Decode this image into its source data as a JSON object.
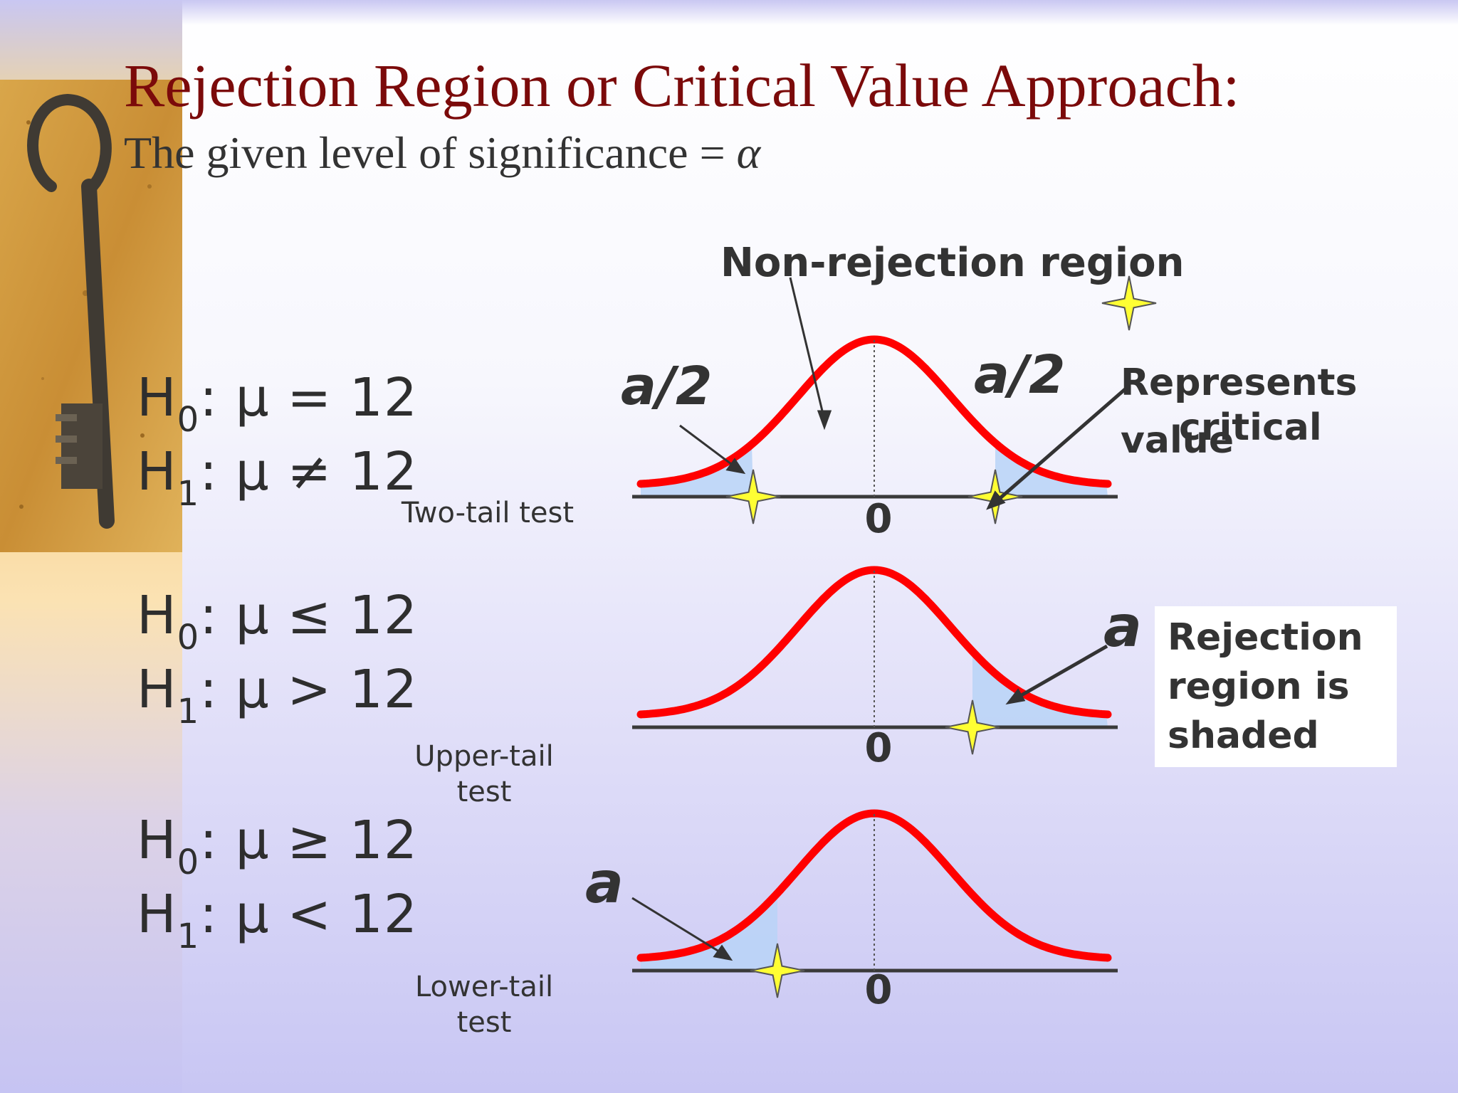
{
  "slide": {
    "title": "Rejection Region or Critical Value Approach:",
    "subtitle_prefix": "The given level of significance = ",
    "subtitle_symbol": "α"
  },
  "tests": [
    {
      "h0": {
        "sym": "H",
        "sub": "0",
        "rest": ": μ = 12"
      },
      "h1": {
        "sym": "H",
        "sub": "1",
        "rest": ": μ ≠ 12"
      },
      "label": "Two-tail test",
      "axis_label": "0",
      "tail_labels": [
        "a/2",
        "a/2"
      ]
    },
    {
      "h0": {
        "sym": "H",
        "sub": "0",
        "rest": ": μ ≤ 12"
      },
      "h1": {
        "sym": "H",
        "sub": "1",
        "rest": ": μ > 12"
      },
      "label": "Upper-tail test",
      "axis_label": "0",
      "tail_labels": [
        "a"
      ]
    },
    {
      "h0": {
        "sym": "H",
        "sub": "0",
        "rest": ": μ ≥ 12"
      },
      "h1": {
        "sym": "H",
        "sub": "1",
        "rest": ": μ < 12"
      },
      "label": "Lower-tail test",
      "axis_label": "0",
      "tail_labels": [
        "a"
      ]
    }
  ],
  "annotations": {
    "non_rejection": "Non-rejection region",
    "represents_line1": "Represents",
    "represents_line2": "critical",
    "represents_line3": "value",
    "rejection_callout": "Rejection region is shaded"
  },
  "colors": {
    "curve": "#ff0000",
    "shade": "#b9d3f7",
    "star": "#ffff33",
    "title": "#7b0a0a"
  }
}
